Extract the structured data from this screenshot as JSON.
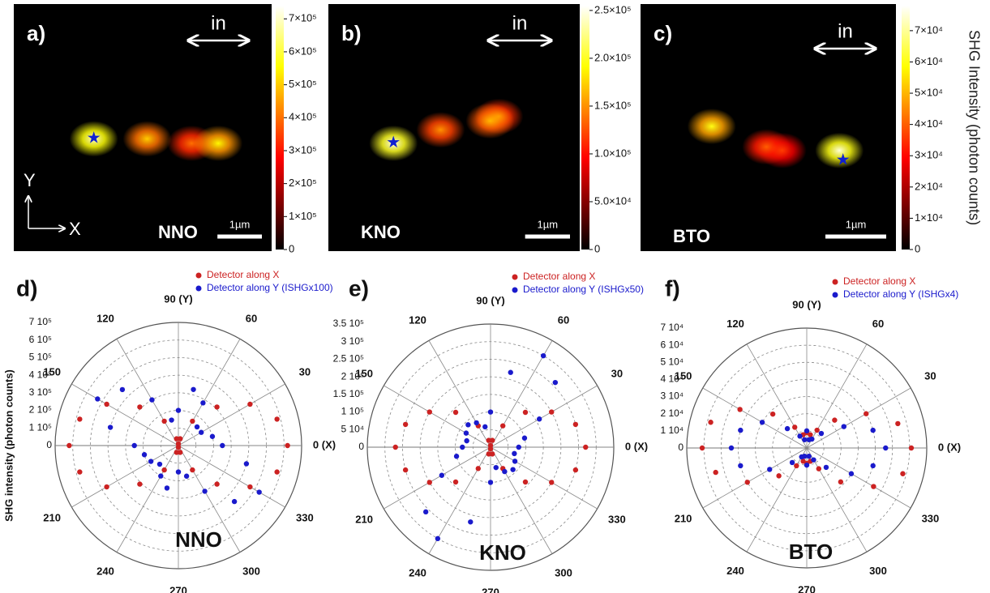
{
  "chart_data": [
    {
      "type": "heatmap",
      "panel": "a)",
      "label": "NNO",
      "arrow_label": "in",
      "axis_labels": {
        "x": "X",
        "y": "Y"
      },
      "xlim": [
        0,
        5.8
      ],
      "ylim": [
        0,
        5.5
      ],
      "zlim": [
        0,
        740000
      ],
      "colormap": "hot",
      "zticks": [
        0,
        {
          "value": 100000,
          "label": "1×10⁵"
        },
        {
          "value": 200000,
          "label": "2×10⁵"
        },
        {
          "value": 300000,
          "label": "3×10⁵"
        },
        {
          "value": 400000,
          "label": "4×10⁵"
        },
        {
          "value": 500000,
          "label": "5×10⁵"
        },
        {
          "value": 600000,
          "label": "6×10⁵"
        },
        {
          "value": 700000,
          "label": "7×10⁵"
        }
      ],
      "spots": [
        {
          "x": 1.8,
          "y": 2.5,
          "value": 700000
        },
        {
          "x": 3.0,
          "y": 2.5,
          "value": 500000
        },
        {
          "x": 4.0,
          "y": 2.4,
          "value": 400000
        },
        {
          "x": 4.6,
          "y": 2.4,
          "value": 550000
        }
      ],
      "star": {
        "x": 1.8,
        "y": 2.5
      },
      "scale_bar": {
        "value": 1,
        "label": "1µm"
      }
    },
    {
      "type": "heatmap",
      "panel": "b)",
      "label": "KNO",
      "arrow_label": "in",
      "xlim": [
        0,
        5.6
      ],
      "ylim": [
        0,
        5.5
      ],
      "zlim": [
        0,
        255000
      ],
      "colormap": "hot",
      "zticks": [
        0,
        {
          "value": 50000,
          "label": "5.0×10⁴"
        },
        {
          "value": 100000,
          "label": "1.0×10⁵"
        },
        {
          "value": 150000,
          "label": "1.5×10⁵"
        },
        {
          "value": 200000,
          "label": "2.0×10⁵"
        },
        {
          "value": 250000,
          "label": "2.5×10⁵"
        }
      ],
      "spots": [
        {
          "x": 1.45,
          "y": 2.4,
          "value": 250000
        },
        {
          "x": 2.5,
          "y": 2.7,
          "value": 150000
        },
        {
          "x": 3.6,
          "y": 2.9,
          "value": 160000
        },
        {
          "x": 3.8,
          "y": 3.0,
          "value": 140000
        }
      ],
      "star": {
        "x": 1.45,
        "y": 2.4
      },
      "scale_bar": {
        "value": 1,
        "label": "1µm"
      }
    },
    {
      "type": "heatmap",
      "panel": "c)",
      "label": "BTO",
      "arrow_label": "in",
      "colorbar_title": "SHG Intensity (photon counts)",
      "xlim": [
        0,
        4.2
      ],
      "ylim": [
        0,
        4.1
      ],
      "zlim": [
        0,
        78000
      ],
      "colormap": "hot",
      "zticks": [
        0,
        {
          "value": 10000,
          "label": "1×10⁴"
        },
        {
          "value": 20000,
          "label": "2×10⁴"
        },
        {
          "value": 30000,
          "label": "3×10⁴"
        },
        {
          "value": 40000,
          "label": "4×10⁴"
        },
        {
          "value": 50000,
          "label": "5×10⁴"
        },
        {
          "value": 60000,
          "label": "6×10⁴"
        },
        {
          "value": 70000,
          "label": "7×10⁴"
        }
      ],
      "spots": [
        {
          "x": 1.17,
          "y": 2.07,
          "value": 60000
        },
        {
          "x": 2.07,
          "y": 1.73,
          "value": 40000
        },
        {
          "x": 2.33,
          "y": 1.67,
          "value": 35000
        },
        {
          "x": 3.27,
          "y": 1.67,
          "value": 75000
        }
      ],
      "star": {
        "x": 3.33,
        "y": 1.5
      },
      "scale_bar": {
        "value": 1,
        "label": "1µm"
      }
    },
    {
      "type": "polar",
      "panel": "d)",
      "label": "NNO",
      "ylabel": "SHG intensity (photon counts)",
      "theta": [
        0,
        15,
        30,
        45,
        60,
        75,
        90,
        105,
        120,
        135,
        150,
        165,
        180,
        195,
        210,
        225,
        240,
        255,
        270,
        285,
        300,
        315,
        330,
        345
      ],
      "rlim": [
        0,
        700000
      ],
      "rticks": [
        0,
        {
          "value": 100000,
          "label": "1 10⁵"
        },
        {
          "value": 200000,
          "label": "2 10⁵"
        },
        {
          "value": 300000,
          "label": "3 10⁵"
        },
        {
          "value": 400000,
          "label": "4 10⁵"
        },
        {
          "value": 500000,
          "label": "5 10⁵"
        },
        {
          "value": 600000,
          "label": "6 10⁵"
        },
        {
          "value": 700000,
          "label": "7 10⁵"
        }
      ],
      "angle_ticks": [
        {
          "value": 0,
          "label": "0 (X)"
        },
        30,
        60,
        {
          "value": 90,
          "label": "90 (Y)"
        },
        120,
        150,
        210,
        240,
        270,
        300,
        330
      ],
      "series": [
        {
          "name": "Detector along X",
          "color": "#cc2222",
          "values": [
            620000,
            580000,
            470000,
            310000,
            160000,
            40000,
            10000,
            40000,
            160000,
            310000,
            470000,
            580000,
            620000,
            580000,
            470000,
            310000,
            160000,
            40000,
            10000,
            40000,
            160000,
            310000,
            470000,
            580000
          ]
        },
        {
          "name": "Detector along Y (ISHGx100)",
          "color": "#1a1acc",
          "values": [
            250000,
            200000,
            150000,
            150000,
            280000,
            330000,
            200000,
            150000,
            300000,
            450000,
            530000,
            400000,
            250000,
            200000,
            180000,
            150000,
            200000,
            250000,
            150000,
            180000,
            300000,
            450000,
            530000,
            400000
          ]
        }
      ]
    },
    {
      "type": "polar",
      "panel": "e)",
      "label": "KNO",
      "theta": [
        0,
        15,
        30,
        45,
        60,
        75,
        90,
        105,
        120,
        135,
        150,
        165,
        180,
        195,
        210,
        225,
        240,
        255,
        270,
        285,
        300,
        315,
        330,
        345
      ],
      "rlim": [
        0,
        350000
      ],
      "rticks": [
        0,
        {
          "value": 50000,
          "label": "5 10⁴"
        },
        {
          "value": 100000,
          "label": "1 10⁵"
        },
        {
          "value": 150000,
          "label": "1.5 10⁵"
        },
        {
          "value": 200000,
          "label": "2 10⁵"
        },
        {
          "value": 250000,
          "label": "2.5 10⁵"
        },
        {
          "value": 300000,
          "label": "3 10⁵"
        },
        {
          "value": 350000,
          "label": "3.5 10⁵"
        }
      ],
      "angle_ticks": [
        {
          "value": 0,
          "label": "0 (X)"
        },
        30,
        60,
        {
          "value": 90,
          "label": "90 (Y)"
        },
        120,
        150,
        210,
        240,
        270,
        300,
        330
      ],
      "series": [
        {
          "name": "Detector along X",
          "color": "#cc2222",
          "values": [
            270000,
            250000,
            200000,
            140000,
            70000,
            20000,
            5000,
            20000,
            70000,
            140000,
            200000,
            250000,
            270000,
            250000,
            200000,
            140000,
            70000,
            20000,
            5000,
            20000,
            70000,
            140000,
            200000,
            250000
          ]
        },
        {
          "name": "Detector along Y (ISHGx50)",
          "color": "#1a1acc",
          "values": [
            80000,
            100000,
            160000,
            260000,
            300000,
            220000,
            100000,
            60000,
            80000,
            90000,
            80000,
            70000,
            80000,
            100000,
            160000,
            260000,
            300000,
            220000,
            100000,
            60000,
            80000,
            90000,
            80000,
            70000
          ]
        }
      ]
    },
    {
      "type": "polar",
      "panel": "f)",
      "label": "BTO",
      "theta": [
        0,
        15,
        30,
        45,
        60,
        75,
        90,
        105,
        120,
        135,
        150,
        165,
        180,
        195,
        210,
        225,
        240,
        255,
        270,
        285,
        300,
        315,
        330,
        345
      ],
      "rlim": [
        0,
        70000
      ],
      "rticks": [
        0,
        {
          "value": 10000,
          "label": "1 10⁴"
        },
        {
          "value": 20000,
          "label": "2 10⁴"
        },
        {
          "value": 30000,
          "label": "3 10⁴"
        },
        {
          "value": 40000,
          "label": "4 10⁴"
        },
        {
          "value": 50000,
          "label": "5 10⁴"
        },
        {
          "value": 60000,
          "label": "6 10⁴"
        },
        {
          "value": 70000,
          "label": "7 10⁴"
        }
      ],
      "angle_ticks": [
        {
          "value": 0,
          "label": "0 (X)"
        },
        30,
        60,
        {
          "value": 90,
          "label": "90 (Y)"
        },
        120,
        150,
        210,
        240,
        270,
        300,
        330
      ],
      "series": [
        {
          "name": "Detector along X",
          "color": "#cc2222",
          "values": [
            61000,
            55000,
            40000,
            23000,
            12000,
            8000,
            9000,
            8000,
            14000,
            28000,
            45000,
            58000,
            61000,
            55000,
            40000,
            23000,
            12000,
            8000,
            9000,
            8000,
            14000,
            28000,
            45000,
            58000
          ]
        },
        {
          "name": "Detector along Y (ISHGx4)",
          "color": "#1a1acc",
          "values": [
            46000,
            40000,
            25000,
            12000,
            6000,
            5000,
            10000,
            5000,
            8000,
            16000,
            30000,
            40000,
            44000,
            40000,
            25000,
            12000,
            6000,
            5000,
            10000,
            5000,
            8000,
            16000,
            30000,
            40000
          ]
        }
      ]
    }
  ]
}
